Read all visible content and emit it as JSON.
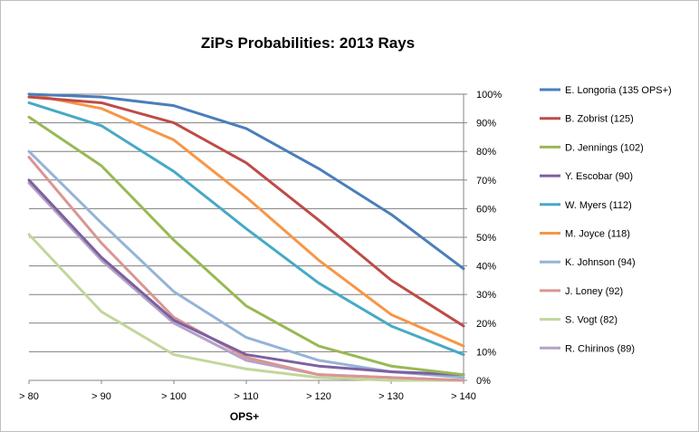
{
  "chart_data": {
    "type": "line",
    "title": "ZiPs Probabilities:  2013 Rays",
    "xlabel": "OPS+",
    "ylabel": "",
    "categories": [
      "> 80",
      "> 90",
      "> 100",
      "> 110",
      "> 120",
      "> 130",
      "> 140"
    ],
    "ylim": [
      0,
      100
    ],
    "yticks": [
      "0%",
      "10%",
      "20%",
      "30%",
      "40%",
      "50%",
      "60%",
      "70%",
      "80%",
      "90%",
      "100%"
    ],
    "y_axis_side": "right",
    "grid": true,
    "legend": "right",
    "series": [
      {
        "name": "E. Longoria (135 OPS+)",
        "color": "#4a7ebb",
        "values": [
          100,
          99,
          96,
          88,
          74,
          58,
          39
        ]
      },
      {
        "name": "B. Zobrist (125)",
        "color": "#be4b48",
        "values": [
          99,
          97,
          90,
          76,
          56,
          35,
          19
        ]
      },
      {
        "name": "D. Jennings (102)",
        "color": "#98b954",
        "values": [
          92,
          75,
          49,
          26,
          12,
          5,
          2
        ]
      },
      {
        "name": "Y. Escobar (90)",
        "color": "#7d60a0",
        "values": [
          70,
          43,
          21,
          9,
          5,
          3,
          2
        ]
      },
      {
        "name": "W. Myers (112)",
        "color": "#46aac5",
        "values": [
          97,
          89,
          73,
          53,
          34,
          19,
          9
        ]
      },
      {
        "name": "M. Joyce (118)",
        "color": "#f79646",
        "values": [
          100,
          95,
          84,
          64,
          42,
          23,
          12
        ]
      },
      {
        "name": "K. Johnson (94)",
        "color": "#95b3d7",
        "values": [
          80,
          55,
          31,
          15,
          7,
          3,
          1
        ]
      },
      {
        "name": "J. Loney (92)",
        "color": "#d99694",
        "values": [
          78,
          48,
          22,
          8,
          2,
          1,
          0
        ]
      },
      {
        "name": "S. Vogt (82)",
        "color": "#c3d69b",
        "values": [
          51,
          24,
          9,
          4,
          1,
          0,
          0
        ]
      },
      {
        "name": "R. Chirinos (89)",
        "color": "#b3a2c7",
        "values": [
          69,
          42,
          20,
          7,
          2,
          1,
          0
        ]
      }
    ]
  }
}
